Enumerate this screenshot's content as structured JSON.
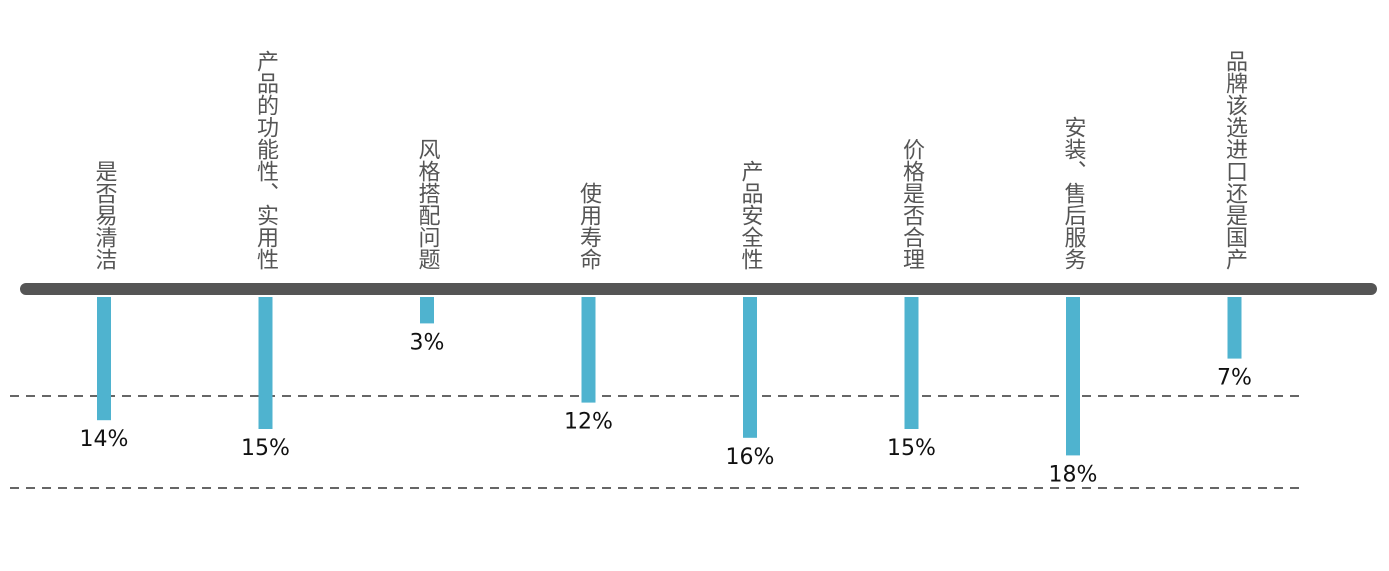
{
  "chart_data": {
    "type": "bar",
    "categories": [
      "是否易清洁",
      "产品的功能性、实用性",
      "风格搭配问题",
      "使用寿命",
      "产品安全性",
      "价格是否合理",
      "安装、售后服务",
      "品牌该选进口还是国产"
    ],
    "values": [
      14,
      15,
      3,
      12,
      16,
      15,
      18,
      7
    ],
    "value_labels": [
      "14%",
      "15%",
      "3%",
      "12%",
      "16%",
      "15%",
      "18%",
      "7%"
    ],
    "color": "#4fb3cf"
  }
}
